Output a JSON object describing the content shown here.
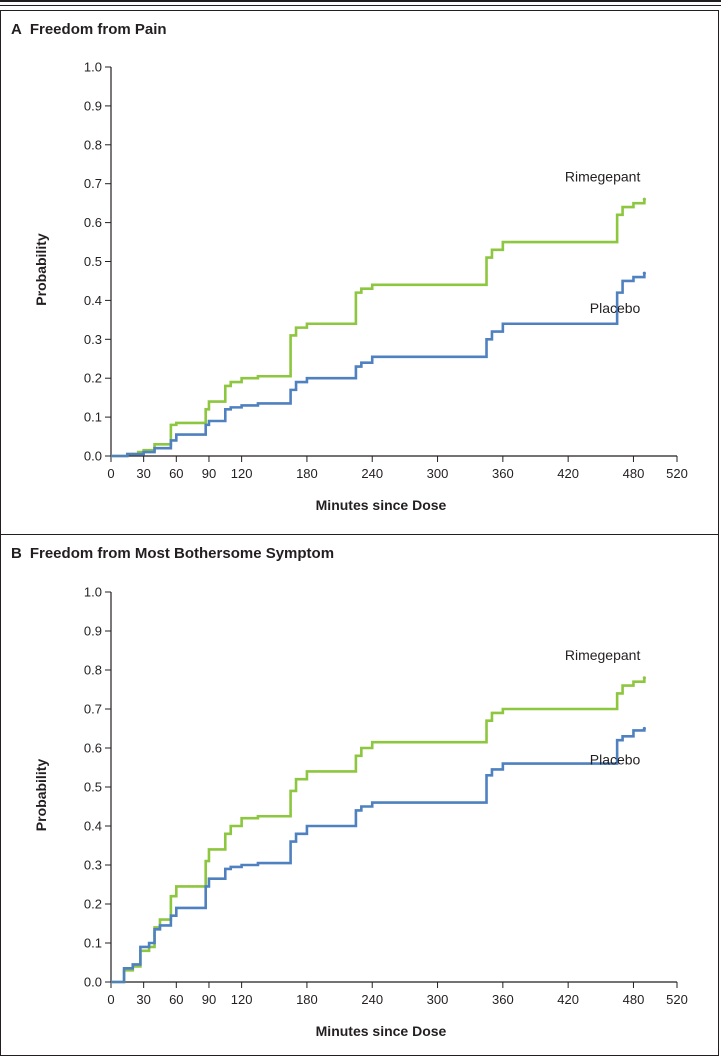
{
  "colors": {
    "rimegepant": "#8dc63f",
    "placebo": "#4f81c0",
    "axis": "#231f20"
  },
  "chart_data": [
    {
      "panel_letter": "A",
      "title": "Freedom from Pain",
      "type": "line",
      "step": true,
      "xlabel": "Minutes since Dose",
      "ylabel": "Probability",
      "xlim": [
        0,
        520
      ],
      "ylim": [
        0,
        1.0
      ],
      "xticks": [
        0,
        30,
        60,
        90,
        120,
        180,
        240,
        300,
        360,
        420,
        480,
        520
      ],
      "xtick_labels": [
        "0",
        "30",
        "60",
        "90",
        "120",
        "180",
        "240",
        "300",
        "360",
        "420",
        "480",
        "520"
      ],
      "yticks": [
        0,
        0.1,
        0.2,
        0.3,
        0.4,
        0.5,
        0.6,
        0.7,
        0.8,
        0.9,
        1.0
      ],
      "ytick_labels": [
        "0.0",
        "0.1",
        "0.2",
        "0.3",
        "0.4",
        "0.5",
        "0.6",
        "0.7",
        "0.8",
        "0.9",
        "1.0"
      ],
      "series": [
        {
          "name": "Rimegepant",
          "x": [
            0,
            15,
            25,
            30,
            40,
            55,
            60,
            87,
            90,
            105,
            110,
            120,
            135,
            165,
            170,
            180,
            225,
            230,
            240,
            345,
            350,
            360,
            465,
            470,
            480,
            490
          ],
          "y": [
            0.0,
            0.005,
            0.01,
            0.015,
            0.03,
            0.08,
            0.085,
            0.12,
            0.14,
            0.18,
            0.19,
            0.2,
            0.205,
            0.31,
            0.33,
            0.34,
            0.42,
            0.43,
            0.44,
            0.51,
            0.53,
            0.55,
            0.62,
            0.64,
            0.65,
            0.66
          ]
        },
        {
          "name": "Placebo",
          "x": [
            0,
            15,
            30,
            40,
            55,
            60,
            87,
            90,
            105,
            110,
            120,
            135,
            165,
            170,
            180,
            225,
            230,
            240,
            345,
            350,
            360,
            465,
            470,
            480,
            490
          ],
          "y": [
            0.0,
            0.005,
            0.01,
            0.02,
            0.04,
            0.055,
            0.08,
            0.09,
            0.12,
            0.125,
            0.13,
            0.135,
            0.17,
            0.19,
            0.2,
            0.23,
            0.24,
            0.255,
            0.3,
            0.32,
            0.34,
            0.42,
            0.45,
            0.46,
            0.47
          ]
        }
      ]
    },
    {
      "panel_letter": "B",
      "title": "Freedom from Most Bothersome Symptom",
      "type": "line",
      "step": true,
      "xlabel": "Minutes since Dose",
      "ylabel": "Probability",
      "xlim": [
        0,
        520
      ],
      "ylim": [
        0,
        1.0
      ],
      "xticks": [
        0,
        30,
        60,
        90,
        120,
        180,
        240,
        300,
        360,
        420,
        480,
        520
      ],
      "xtick_labels": [
        "0",
        "30",
        "60",
        "90",
        "120",
        "180",
        "240",
        "300",
        "360",
        "420",
        "480",
        "520"
      ],
      "yticks": [
        0,
        0.1,
        0.2,
        0.3,
        0.4,
        0.5,
        0.6,
        0.7,
        0.8,
        0.9,
        1.0
      ],
      "ytick_labels": [
        "0.0",
        "0.1",
        "0.2",
        "0.3",
        "0.4",
        "0.5",
        "0.6",
        "0.7",
        "0.8",
        "0.9",
        "1.0"
      ],
      "series": [
        {
          "name": "Rimegepant",
          "x": [
            0,
            12,
            20,
            27,
            35,
            40,
            45,
            55,
            60,
            87,
            90,
            105,
            110,
            120,
            135,
            165,
            170,
            180,
            225,
            230,
            240,
            345,
            350,
            360,
            465,
            470,
            480,
            490
          ],
          "y": [
            0.0,
            0.03,
            0.04,
            0.08,
            0.09,
            0.14,
            0.16,
            0.22,
            0.245,
            0.31,
            0.34,
            0.38,
            0.4,
            0.42,
            0.425,
            0.49,
            0.52,
            0.54,
            0.58,
            0.6,
            0.615,
            0.67,
            0.69,
            0.7,
            0.74,
            0.76,
            0.77,
            0.78
          ]
        },
        {
          "name": "Placebo",
          "x": [
            0,
            12,
            20,
            27,
            35,
            40,
            45,
            55,
            60,
            87,
            90,
            105,
            110,
            120,
            135,
            165,
            170,
            180,
            225,
            230,
            240,
            345,
            350,
            360,
            465,
            470,
            480,
            490
          ],
          "y": [
            0.0,
            0.035,
            0.045,
            0.09,
            0.1,
            0.135,
            0.145,
            0.17,
            0.19,
            0.245,
            0.265,
            0.29,
            0.295,
            0.3,
            0.305,
            0.36,
            0.38,
            0.4,
            0.44,
            0.45,
            0.46,
            0.53,
            0.545,
            0.56,
            0.62,
            0.63,
            0.645,
            0.65
          ]
        }
      ]
    }
  ]
}
